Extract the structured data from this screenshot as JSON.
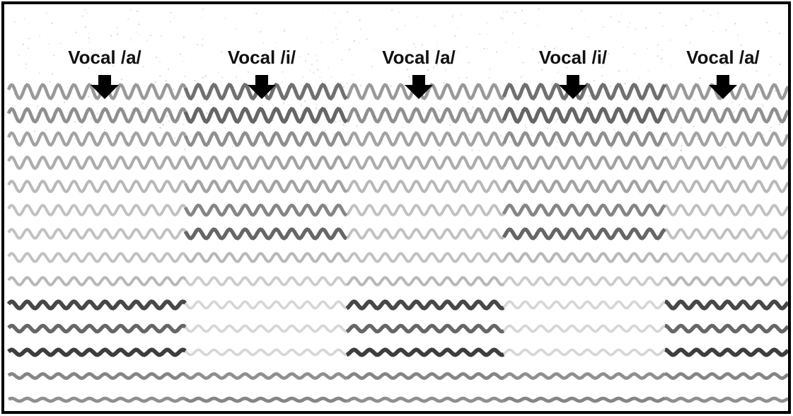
{
  "labels": [
    "Vocal /a/",
    "Vocal /i/",
    "Vocal /a/",
    "Vocal /i/",
    "Vocal /a/"
  ]
}
